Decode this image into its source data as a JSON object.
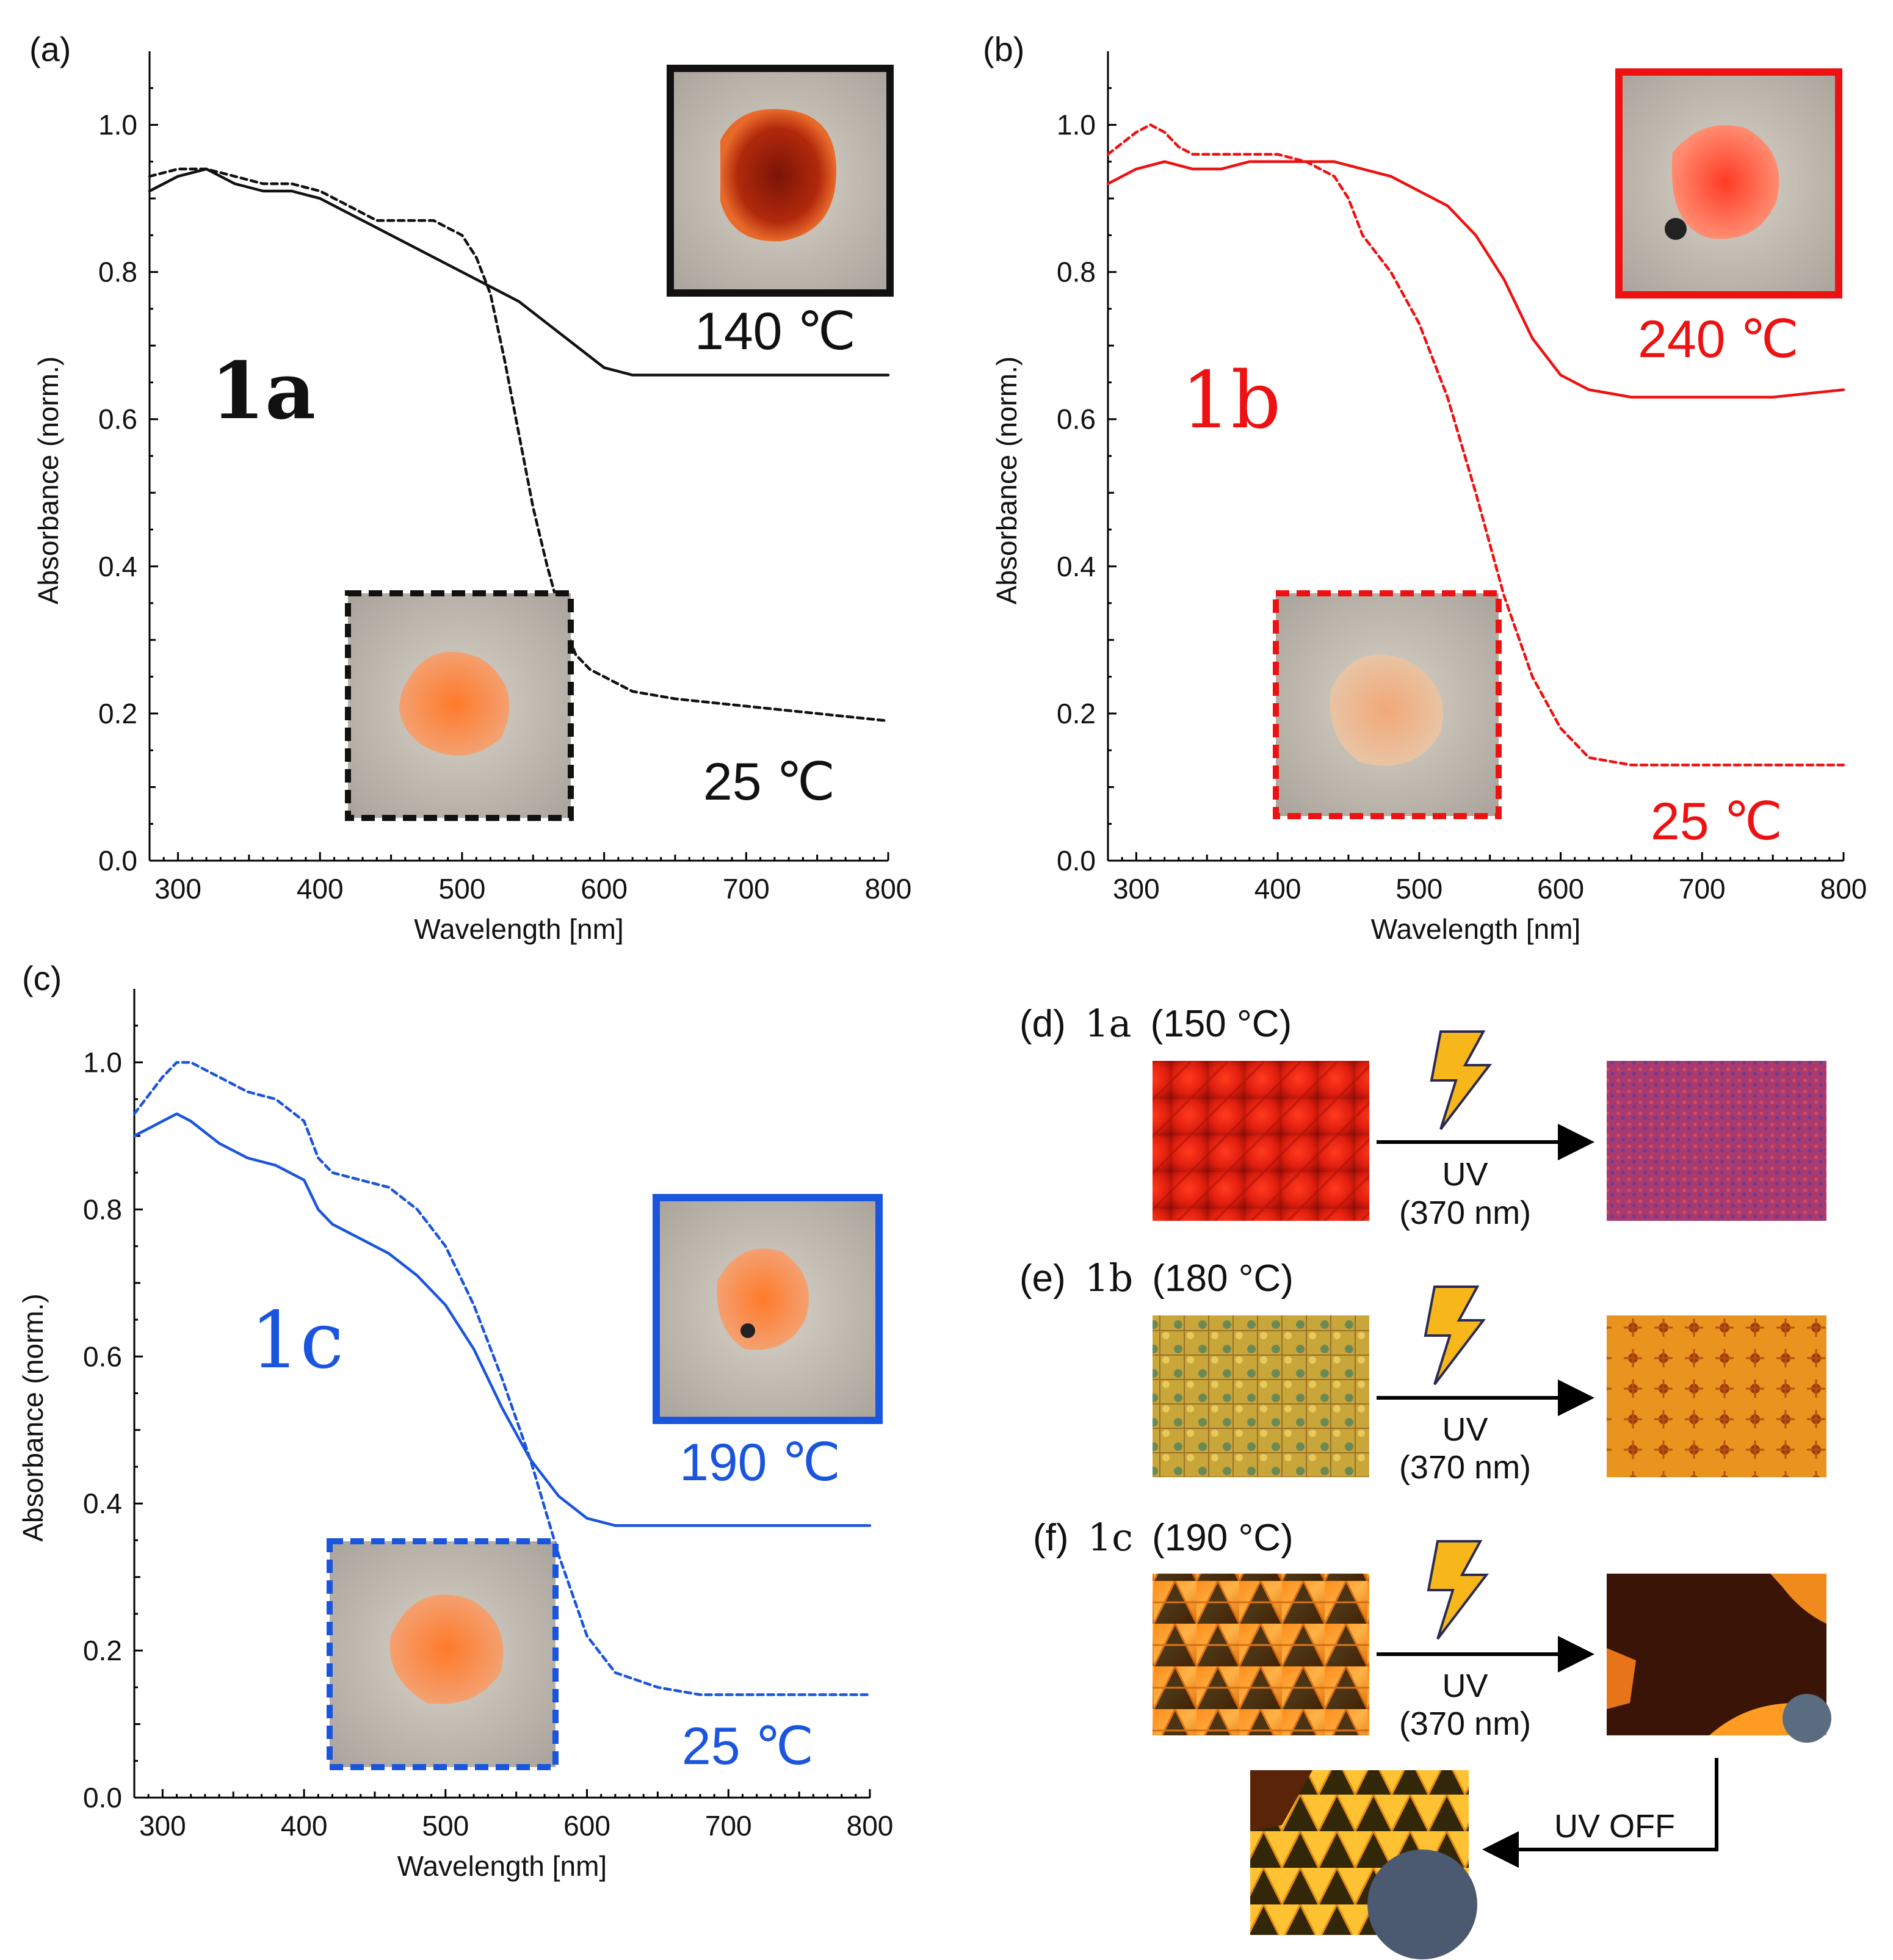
{
  "chart_data": [
    {
      "panel": "(a)",
      "type": "line",
      "color": "#111111",
      "label": "1a",
      "xlabel": "Wavelength [nm]",
      "ylabel": "Absorbance (norm.)",
      "xlim": [
        280,
        800
      ],
      "ylim": [
        0,
        1.1
      ],
      "xticks": [
        300,
        400,
        500,
        600,
        700,
        800
      ],
      "yticks": [
        0.0,
        0.2,
        0.4,
        0.6,
        0.8,
        1.0
      ],
      "series": [
        {
          "name": "140 ℃",
          "style": "solid",
          "x": [
            280,
            300,
            320,
            340,
            360,
            380,
            400,
            420,
            440,
            460,
            480,
            500,
            520,
            540,
            560,
            580,
            600,
            620,
            650,
            700,
            750,
            800
          ],
          "y": [
            0.91,
            0.93,
            0.94,
            0.92,
            0.91,
            0.91,
            0.9,
            0.88,
            0.86,
            0.84,
            0.82,
            0.8,
            0.78,
            0.76,
            0.73,
            0.7,
            0.67,
            0.66,
            0.66,
            0.66,
            0.66,
            0.66
          ]
        },
        {
          "name": "25 ℃",
          "style": "dashed",
          "x": [
            280,
            300,
            320,
            340,
            360,
            380,
            400,
            420,
            440,
            460,
            480,
            500,
            510,
            520,
            530,
            540,
            550,
            560,
            570,
            580,
            590,
            600,
            620,
            650,
            700,
            750,
            800
          ],
          "y": [
            0.93,
            0.94,
            0.94,
            0.93,
            0.92,
            0.92,
            0.91,
            0.89,
            0.87,
            0.87,
            0.87,
            0.85,
            0.82,
            0.77,
            0.68,
            0.58,
            0.48,
            0.4,
            0.33,
            0.28,
            0.26,
            0.25,
            0.23,
            0.22,
            0.21,
            0.2,
            0.19
          ]
        }
      ],
      "photos": [
        {
          "caption": "140 ℃",
          "border": "solid"
        },
        {
          "caption": "25 ℃",
          "border": "dashed"
        }
      ]
    },
    {
      "panel": "(b)",
      "type": "line",
      "color": "#ee1111",
      "label": "1b",
      "xlabel": "Wavelength [nm]",
      "ylabel": "Absorbance (norm.)",
      "xlim": [
        280,
        800
      ],
      "ylim": [
        0,
        1.1
      ],
      "xticks": [
        300,
        400,
        500,
        600,
        700,
        800
      ],
      "yticks": [
        0.0,
        0.2,
        0.4,
        0.6,
        0.8,
        1.0
      ],
      "series": [
        {
          "name": "240 ℃",
          "style": "solid",
          "x": [
            280,
            300,
            320,
            340,
            360,
            380,
            400,
            420,
            440,
            460,
            480,
            500,
            520,
            540,
            560,
            580,
            600,
            620,
            650,
            700,
            750,
            800
          ],
          "y": [
            0.92,
            0.94,
            0.95,
            0.94,
            0.94,
            0.95,
            0.95,
            0.95,
            0.95,
            0.94,
            0.93,
            0.91,
            0.89,
            0.85,
            0.79,
            0.71,
            0.66,
            0.64,
            0.63,
            0.63,
            0.63,
            0.64
          ]
        },
        {
          "name": "25 ℃",
          "style": "dashed",
          "x": [
            280,
            300,
            310,
            320,
            330,
            340,
            360,
            380,
            400,
            420,
            440,
            450,
            460,
            480,
            500,
            520,
            540,
            560,
            580,
            600,
            620,
            650,
            700,
            750,
            800
          ],
          "y": [
            0.96,
            0.99,
            1.0,
            0.99,
            0.97,
            0.96,
            0.96,
            0.96,
            0.96,
            0.95,
            0.93,
            0.9,
            0.85,
            0.8,
            0.73,
            0.63,
            0.5,
            0.36,
            0.25,
            0.18,
            0.14,
            0.13,
            0.13,
            0.13,
            0.13
          ]
        }
      ],
      "photos": [
        {
          "caption": "240 ℃",
          "border": "solid"
        },
        {
          "caption": "25 ℃",
          "border": "dashed"
        }
      ]
    },
    {
      "panel": "(c)",
      "type": "line",
      "color": "#1a55dd",
      "label": "1c",
      "xlabel": "Wavelength [nm]",
      "ylabel": "Absorbance (norm.)",
      "xlim": [
        280,
        800
      ],
      "ylim": [
        0,
        1.1
      ],
      "xticks": [
        300,
        400,
        500,
        600,
        700,
        800
      ],
      "yticks": [
        0.0,
        0.2,
        0.4,
        0.6,
        0.8,
        1.0
      ],
      "series": [
        {
          "name": "190 ℃",
          "style": "solid",
          "x": [
            280,
            300,
            310,
            320,
            340,
            360,
            380,
            400,
            410,
            420,
            440,
            460,
            480,
            500,
            520,
            540,
            560,
            580,
            600,
            620,
            650,
            680,
            700,
            750,
            800
          ],
          "y": [
            0.9,
            0.92,
            0.93,
            0.92,
            0.89,
            0.87,
            0.86,
            0.84,
            0.8,
            0.78,
            0.76,
            0.74,
            0.71,
            0.67,
            0.61,
            0.53,
            0.46,
            0.41,
            0.38,
            0.37,
            0.37,
            0.37,
            0.37,
            0.37,
            0.37
          ]
        },
        {
          "name": "25 ℃",
          "style": "dashed",
          "x": [
            280,
            300,
            310,
            320,
            340,
            360,
            380,
            400,
            410,
            420,
            440,
            460,
            480,
            500,
            520,
            540,
            560,
            580,
            600,
            620,
            650,
            680,
            700,
            750,
            800
          ],
          "y": [
            0.93,
            0.98,
            1.0,
            1.0,
            0.98,
            0.96,
            0.95,
            0.92,
            0.87,
            0.85,
            0.84,
            0.83,
            0.8,
            0.75,
            0.67,
            0.57,
            0.46,
            0.33,
            0.22,
            0.17,
            0.15,
            0.14,
            0.14,
            0.14,
            0.14
          ]
        }
      ],
      "photos": [
        {
          "caption": "190 ℃",
          "border": "solid"
        },
        {
          "caption": "25 ℃",
          "border": "dashed"
        }
      ]
    }
  ],
  "micrographs": {
    "rows": [
      {
        "panel": "(d)",
        "compound": "1a",
        "temp": "(150 °C)",
        "arrow_line1": "UV",
        "arrow_line2": "(370 nm)"
      },
      {
        "panel": "(e)",
        "compound": "1b",
        "temp": "(180 °C)",
        "arrow_line1": "UV",
        "arrow_line2": "(370 nm)"
      },
      {
        "panel": "(f)",
        "compound": "1c",
        "temp": "(190 °C)",
        "arrow_line1": "UV",
        "arrow_line2": "(370 nm)"
      }
    ],
    "off_label": "UV OFF"
  }
}
